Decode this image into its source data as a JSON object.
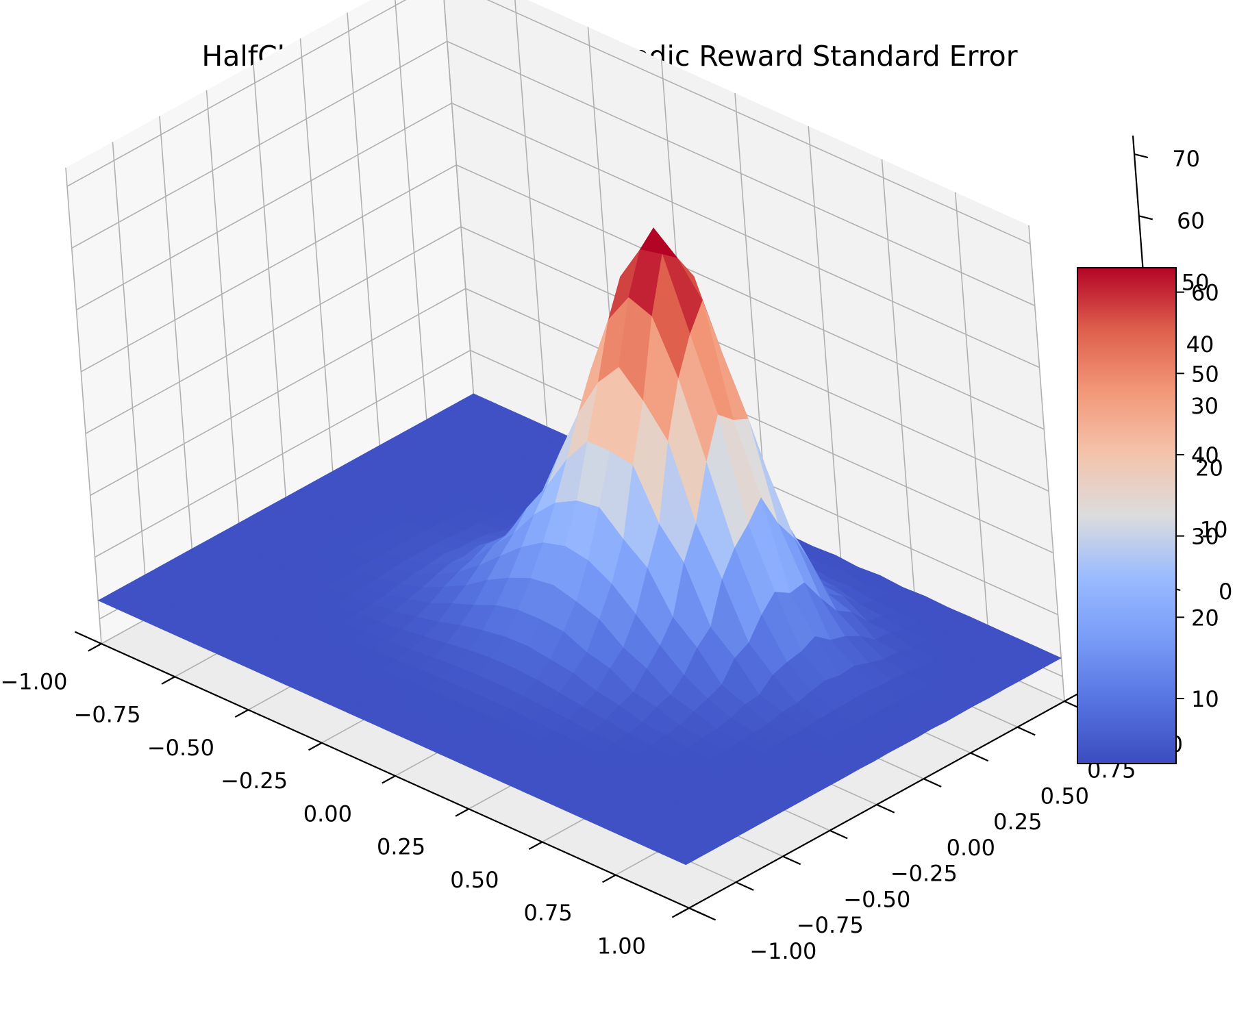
{
  "chart_data": {
    "type": "surface",
    "title": "HalfCheetah-v2 | Mujoco | Episodic Reward Standard Error",
    "colormap": "coolwarm",
    "grid": true,
    "x": {
      "range": [
        -1.0,
        1.0
      ],
      "ticks": [
        -1.0,
        -0.75,
        -0.5,
        -0.25,
        0.0,
        0.25,
        0.5,
        0.75,
        1.0
      ],
      "tick_labels": [
        "−1.00",
        "−0.75",
        "−0.50",
        "−0.25",
        "0.00",
        "0.25",
        "0.50",
        "0.75",
        "1.00"
      ]
    },
    "y": {
      "range": [
        -1.0,
        1.0
      ],
      "ticks": [
        -1.0,
        -0.75,
        -0.5,
        -0.25,
        0.0,
        0.25,
        0.5,
        0.75,
        1.0
      ],
      "tick_labels": [
        "−1.00",
        "−0.75",
        "−0.50",
        "−0.25",
        "0.00",
        "0.25",
        "0.50",
        "0.75",
        "1.00"
      ]
    },
    "z": {
      "range": [
        -4,
        73
      ],
      "ticks": [
        0,
        10,
        20,
        30,
        40,
        50,
        60,
        70
      ],
      "tick_labels": [
        "0",
        "10",
        "20",
        "30",
        "40",
        "50",
        "60",
        "70"
      ]
    },
    "surface": {
      "description": "single peak near the grid centre rising from a flat floor",
      "floor_value": 3,
      "peak_value": 63,
      "peak_location": [
        0.2,
        0.3
      ]
    },
    "colorbar": {
      "range": [
        2,
        63
      ],
      "ticks": [
        10,
        20,
        30,
        40,
        50,
        60
      ],
      "tick_labels": [
        "10",
        "20",
        "30",
        "40",
        "50",
        "60"
      ],
      "placement": "right"
    }
  }
}
